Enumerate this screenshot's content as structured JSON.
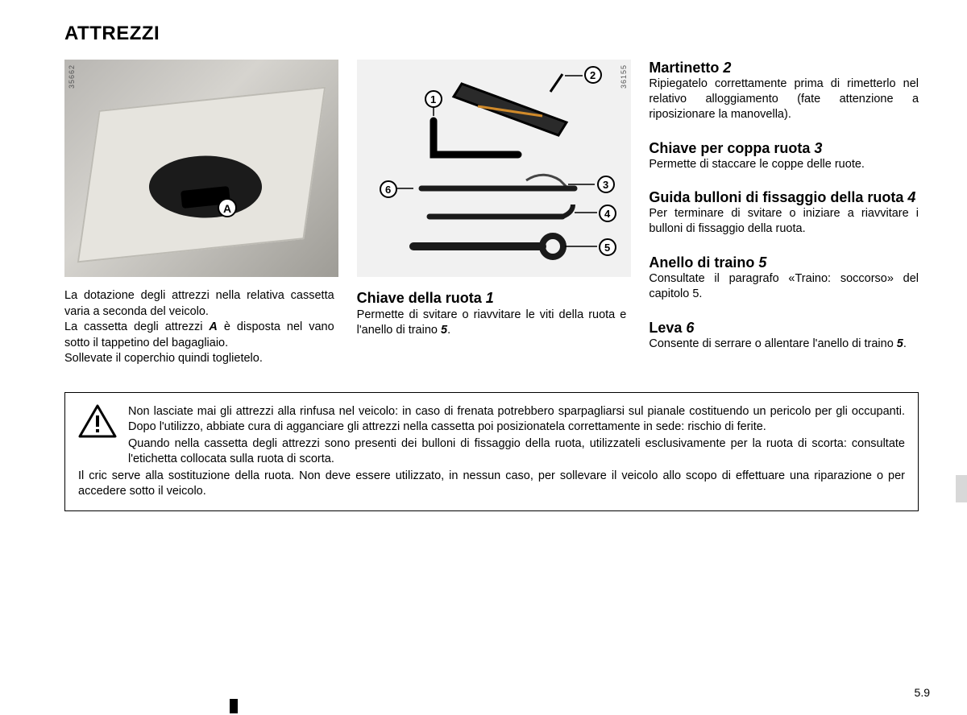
{
  "title": "ATTREZZI",
  "photo_id": "35662",
  "diagram_id": "36155",
  "marker_A": "A",
  "callouts": {
    "1": "1",
    "2": "2",
    "3": "3",
    "4": "4",
    "5": "5",
    "6": "6"
  },
  "col1": {
    "caption_html": "La dotazione degli attrezzi nella relativa cassetta varia a seconda del veicolo.\nLa cassetta degli attrezzi <span class='b'>A</span> è disposta nel vano sotto il tappetino del bagagliaio.\nSollevate il coperchio quindi toglietelo."
  },
  "col2": {
    "heading": "Chiave della ruota",
    "num": "1",
    "body_html": "Permette di svitare o riavvitare le viti della ruota e l'anello di traino <span class='bold-i'>5</span>."
  },
  "col3": [
    {
      "heading": "Martinetto",
      "num": "2",
      "body": "Ripiegatelo correttamente prima di rimetterlo nel relativo alloggiamento (fate attenzione a riposizionare la manovella)."
    },
    {
      "heading": "Chiave per coppa ruota",
      "num": "3",
      "body": "Permette di staccare le coppe delle ruote."
    },
    {
      "heading": "Guida bulloni di fissaggio della ruota",
      "num": "4",
      "body": "Per terminare di svitare o iniziare a riavvitare i bulloni di fissaggio della ruota."
    },
    {
      "heading": "Anello di traino",
      "num": "5",
      "body": "Consultate il paragrafo «Traino: soccorso» del capitolo 5."
    },
    {
      "heading": "Leva",
      "num": "6",
      "body_html": "Consente di serrare o allentare l'anello di traino <span class='bold-i'>5</span>."
    }
  ],
  "warning": {
    "p1": "Non lasciate mai gli attrezzi alla rinfusa nel veicolo: in caso di frenata potrebbero sparpagliarsi sul pianale costituendo un pericolo per gli occupanti. Dopo l'utilizzo, abbiate cura di agganciare gli attrezzi nella cassetta poi posizionatela correttamente in sede: rischio di ferite.",
    "p2": "Quando nella cassetta degli attrezzi sono presenti dei bulloni di fissaggio della ruota, utilizzateli esclusivamente per la ruota di scorta: consultate l'etichetta collocata sulla ruota di scorta.",
    "p3": "Il cric serve alla sostituzione della ruota. Non deve essere utilizzato, in nessun caso, per sollevare il veicolo allo scopo di effettuare una riparazione o per accedere sotto il veicolo."
  },
  "page_num": "5.9"
}
